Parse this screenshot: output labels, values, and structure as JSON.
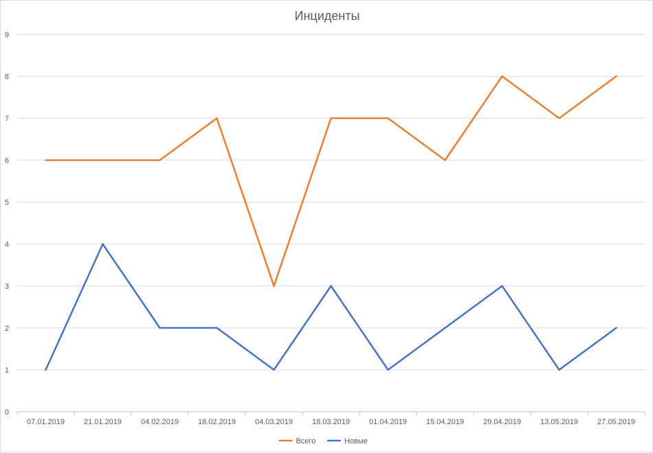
{
  "chart_data": {
    "type": "line",
    "title": "Инциденты",
    "xlabel": "",
    "ylabel": "",
    "categories": [
      "07.01.2019",
      "21.01.2019",
      "04.02.2019",
      "18.02.2019",
      "04.03.2019",
      "18.03.2019",
      "01.04.2019",
      "15.04.2019",
      "29.04.2019",
      "13.05.2019",
      "27.05.2019"
    ],
    "ylim": [
      0,
      9
    ],
    "yticks": [
      0,
      1,
      2,
      3,
      4,
      5,
      6,
      7,
      8,
      9
    ],
    "grid": true,
    "legend_position": "bottom",
    "series": [
      {
        "name": "Всего",
        "color": "#ed7d31",
        "values": [
          6,
          6,
          6,
          7,
          3,
          7,
          7,
          6,
          8,
          7,
          8
        ]
      },
      {
        "name": "Новые",
        "color": "#4472c4",
        "values": [
          1,
          4,
          2,
          2,
          1,
          3,
          1,
          2,
          3,
          1,
          2
        ]
      }
    ]
  }
}
